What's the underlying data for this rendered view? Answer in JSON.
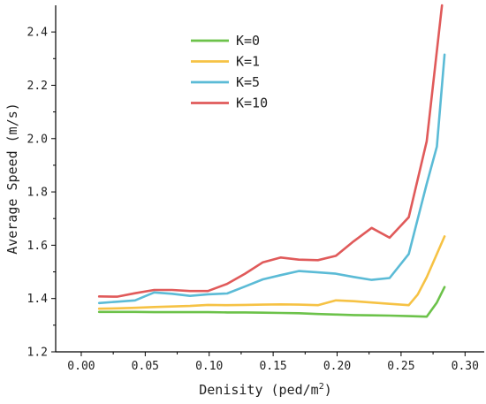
{
  "chart_data": {
    "type": "line",
    "xlabel": "Denisity (ped/m",
    "xlabel_superscript": "2",
    "xlabel_suffix": ")",
    "ylabel": "Average Speed (m/s)",
    "xlim": [
      -0.02,
      0.315
    ],
    "ylim": [
      1.2,
      2.5
    ],
    "x_ticks": [
      "0.00",
      "0.05",
      "0.10",
      "0.15",
      "0.20",
      "0.25",
      "0.30"
    ],
    "y_ticks": [
      "1.2",
      "1.4",
      "1.6",
      "1.8",
      "2.0",
      "2.2",
      "2.4"
    ],
    "legend_position": "top-center",
    "series": [
      {
        "name": "K=0",
        "color": "#6cc24a",
        "x": [
          0.014,
          0.028,
          0.042,
          0.057,
          0.071,
          0.085,
          0.099,
          0.114,
          0.128,
          0.142,
          0.156,
          0.17,
          0.185,
          0.199,
          0.213,
          0.227,
          0.241,
          0.256,
          0.27,
          0.278,
          0.284
        ],
        "y": [
          1.35,
          1.35,
          1.35,
          1.349,
          1.349,
          1.349,
          1.349,
          1.348,
          1.348,
          1.347,
          1.346,
          1.345,
          1.342,
          1.34,
          1.338,
          1.337,
          1.336,
          1.334,
          1.332,
          1.385,
          1.443
        ]
      },
      {
        "name": "K=1",
        "color": "#f6c244",
        "x": [
          0.014,
          0.028,
          0.042,
          0.057,
          0.071,
          0.085,
          0.099,
          0.114,
          0.128,
          0.142,
          0.156,
          0.17,
          0.185,
          0.199,
          0.213,
          0.227,
          0.241,
          0.256,
          0.263,
          0.27,
          0.284
        ],
        "y": [
          1.362,
          1.363,
          1.365,
          1.368,
          1.37,
          1.372,
          1.376,
          1.375,
          1.376,
          1.377,
          1.378,
          1.377,
          1.375,
          1.393,
          1.39,
          1.385,
          1.38,
          1.375,
          1.415,
          1.48,
          1.633
        ]
      },
      {
        "name": "K=5",
        "color": "#5bbbd6",
        "x": [
          0.014,
          0.028,
          0.042,
          0.057,
          0.071,
          0.085,
          0.099,
          0.114,
          0.128,
          0.142,
          0.156,
          0.17,
          0.185,
          0.199,
          0.213,
          0.227,
          0.241,
          0.256,
          0.27,
          0.278,
          0.284
        ],
        "y": [
          1.383,
          1.388,
          1.393,
          1.423,
          1.418,
          1.41,
          1.416,
          1.419,
          1.445,
          1.472,
          1.488,
          1.503,
          1.498,
          1.493,
          1.481,
          1.47,
          1.477,
          1.567,
          1.83,
          1.97,
          2.315
        ]
      },
      {
        "name": "K=10",
        "color": "#e05a5a",
        "x": [
          0.014,
          0.028,
          0.042,
          0.057,
          0.071,
          0.085,
          0.099,
          0.114,
          0.128,
          0.142,
          0.156,
          0.17,
          0.185,
          0.199,
          0.213,
          0.227,
          0.241,
          0.256,
          0.27,
          0.282
        ],
        "y": [
          1.408,
          1.407,
          1.42,
          1.432,
          1.432,
          1.428,
          1.428,
          1.455,
          1.493,
          1.536,
          1.554,
          1.546,
          1.544,
          1.56,
          1.615,
          1.665,
          1.628,
          1.705,
          1.99,
          2.5
        ]
      }
    ]
  }
}
